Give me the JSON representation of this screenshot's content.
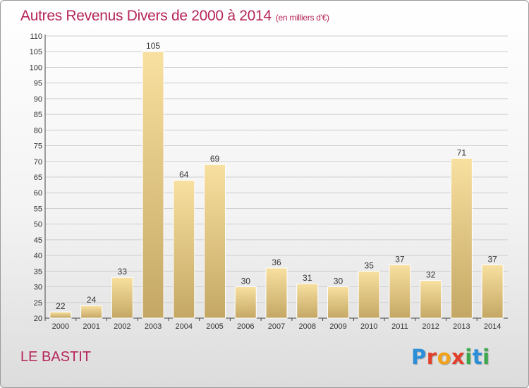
{
  "title": "Autres Revenus Divers de 2000 à 2014",
  "title_unit": "(en milliers d'€)",
  "commune": "LE BASTIT",
  "logo_text": "Proxiti",
  "colors": {
    "title": "#b5245a",
    "bar_light": "#f8e0a0",
    "bar_dark": "#c4a764",
    "logo": [
      "#2a8fd8",
      "#e0402c",
      "#f2a21a",
      "#e0402c",
      "#3aa84a",
      "#2a8fd8",
      "#3aa84a"
    ]
  },
  "chart_data": {
    "type": "bar",
    "title": "Autres Revenus Divers de 2000 à 2014",
    "categories": [
      "2000",
      "2001",
      "2002",
      "2003",
      "2004",
      "2005",
      "2006",
      "2007",
      "2008",
      "2009",
      "2010",
      "2011",
      "2012",
      "2013",
      "2014"
    ],
    "values": [
      22,
      24,
      33,
      105,
      64,
      69,
      30,
      36,
      31,
      30,
      35,
      37,
      32,
      71,
      37
    ],
    "ylim": [
      20,
      110
    ],
    "yticks": [
      20,
      25,
      30,
      35,
      40,
      45,
      50,
      55,
      60,
      65,
      70,
      75,
      80,
      85,
      90,
      95,
      100,
      105,
      110
    ],
    "grid": true,
    "legend": "none"
  }
}
